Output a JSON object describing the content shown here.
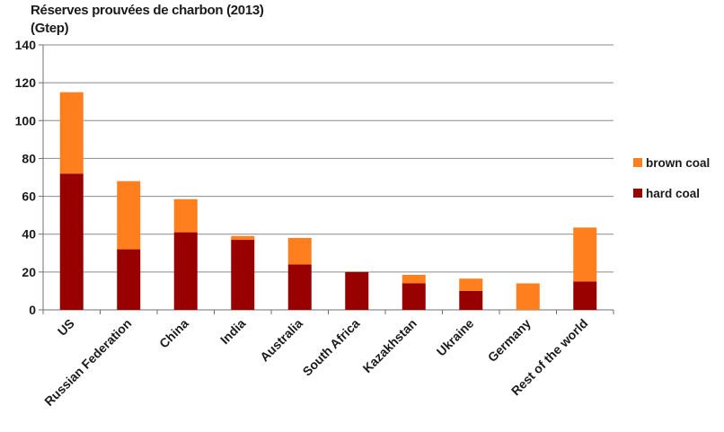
{
  "chart_data": {
    "type": "bar",
    "stacked": true,
    "title": "Réserves prouvées de charbon (2013)",
    "subtitle": "(Gtep)",
    "categories": [
      "US",
      "Russian Federation",
      "China",
      "India",
      "Australia",
      "South Africa",
      "Kazakhstan",
      "Ukraine",
      "Germany",
      "Rest of the world"
    ],
    "series": [
      {
        "name": "hard coal",
        "color": "#990000",
        "values": [
          72,
          32,
          41,
          37,
          24,
          20,
          14,
          10,
          0,
          15
        ]
      },
      {
        "name": "brown coal",
        "color": "#ff7f1e",
        "values": [
          43,
          36,
          17.5,
          2,
          14,
          0,
          4.5,
          6.5,
          14,
          28.5
        ]
      }
    ],
    "ylim": [
      0,
      140
    ],
    "yticks": [
      0,
      20,
      40,
      60,
      80,
      100,
      120,
      140
    ],
    "grid": true,
    "legend_position": "right",
    "legend_order": [
      "brown coal",
      "hard coal"
    ]
  }
}
